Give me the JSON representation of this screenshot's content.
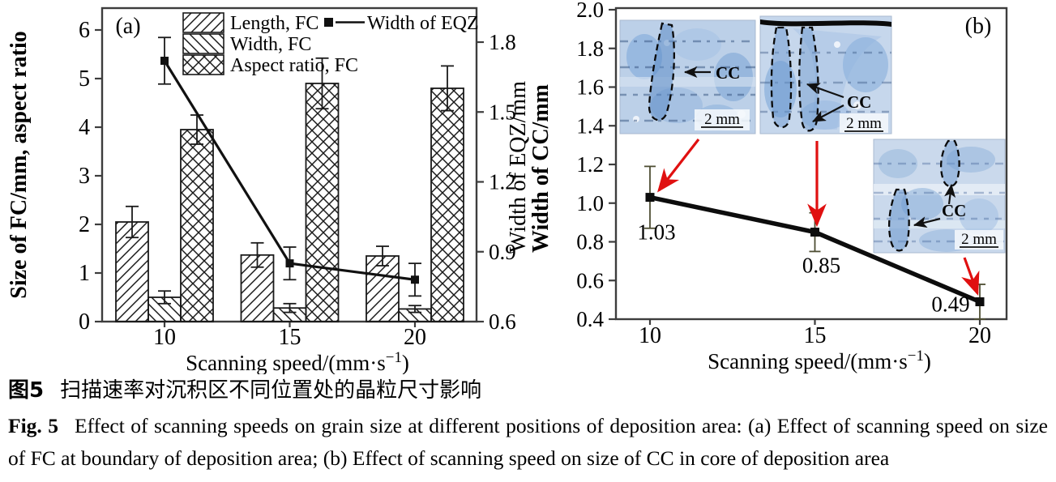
{
  "caption": {
    "zh_prefix": "图5",
    "zh_text": "扫描速率对沉积区不同位置处的晶粒尺寸影响",
    "en_prefix": "Fig. 5",
    "en_text": "Effect of scanning speeds on grain size at different positions of deposition area: (a) Effect of scanning speed on size of FC at boundary of deposition area; (b) Effect of scanning speed on size of CC in core of deposition area"
  },
  "colors": {
    "frame": "#3d3d3d",
    "ink": "#111111",
    "error_bar": "#4e4e33",
    "red_arrow": "#e01010",
    "micrograph_base": "#bcd0e8"
  },
  "chart_data": [
    {
      "id": "a",
      "type": "bar",
      "panel_label": "(a)",
      "categories": [
        "10",
        "15",
        "20"
      ],
      "xlabel": "Scanning speed/(mm·s⁻¹)",
      "ylabel_left": "Size of FC/mm, aspect ratio",
      "ylabel_right": "Width of EQZ/mm",
      "ylim_left": [
        0,
        6.45
      ],
      "yticks_left": [
        "0",
        "1",
        "2",
        "3",
        "4",
        "5",
        "6"
      ],
      "ylim_right": [
        0.6,
        1.95
      ],
      "yticks_right": [
        "0.6",
        "0.9",
        "1.2",
        "1.5",
        "1.8"
      ],
      "grid": false,
      "legend_position": "top",
      "series": [
        {
          "name": "Length, FC",
          "type": "bar",
          "axis": "left",
          "hatch": "diag-forward",
          "values": [
            2.05,
            1.37,
            1.35
          ],
          "errors": [
            0.32,
            0.25,
            0.2
          ]
        },
        {
          "name": "Width, FC",
          "type": "bar",
          "axis": "left",
          "hatch": "diag-back",
          "values": [
            0.5,
            0.28,
            0.26
          ],
          "errors": [
            0.13,
            0.09,
            0.07
          ]
        },
        {
          "name": "Aspect ratio, FC",
          "type": "bar",
          "axis": "left",
          "hatch": "crosshatch",
          "values": [
            3.95,
            4.9,
            4.8
          ],
          "errors": [
            0.3,
            0.52,
            0.46
          ]
        },
        {
          "name": "Width of EQZ",
          "type": "line",
          "axis": "right",
          "marker": "square",
          "values": [
            1.72,
            0.85,
            0.78
          ],
          "errors": [
            0.1,
            0.07,
            0.07
          ]
        }
      ]
    },
    {
      "id": "b",
      "type": "line",
      "panel_label": "(b)",
      "x": [
        "10",
        "15",
        "20"
      ],
      "xlabel": "Scanning speed/(mm·s⁻¹)",
      "ylabel": "Width of CC/mm",
      "ylim": [
        0.4,
        2.0
      ],
      "yticks": [
        "0.4",
        "0.6",
        "0.8",
        "1.0",
        "1.2",
        "1.4",
        "1.6",
        "1.8",
        "2.0"
      ],
      "grid": false,
      "series": [
        {
          "name": "Width of CC",
          "marker": "square",
          "values": [
            1.03,
            0.85,
            0.49
          ],
          "errors": [
            0.16,
            0.1,
            0.09
          ],
          "data_labels": [
            "1.03",
            "0.85",
            "0.49"
          ]
        }
      ],
      "insets": [
        {
          "label": "CC",
          "scale_bar": "2 mm"
        },
        {
          "label": "CC",
          "scale_bar": "2 mm"
        },
        {
          "label": "CC",
          "scale_bar": "2 mm"
        }
      ]
    }
  ]
}
